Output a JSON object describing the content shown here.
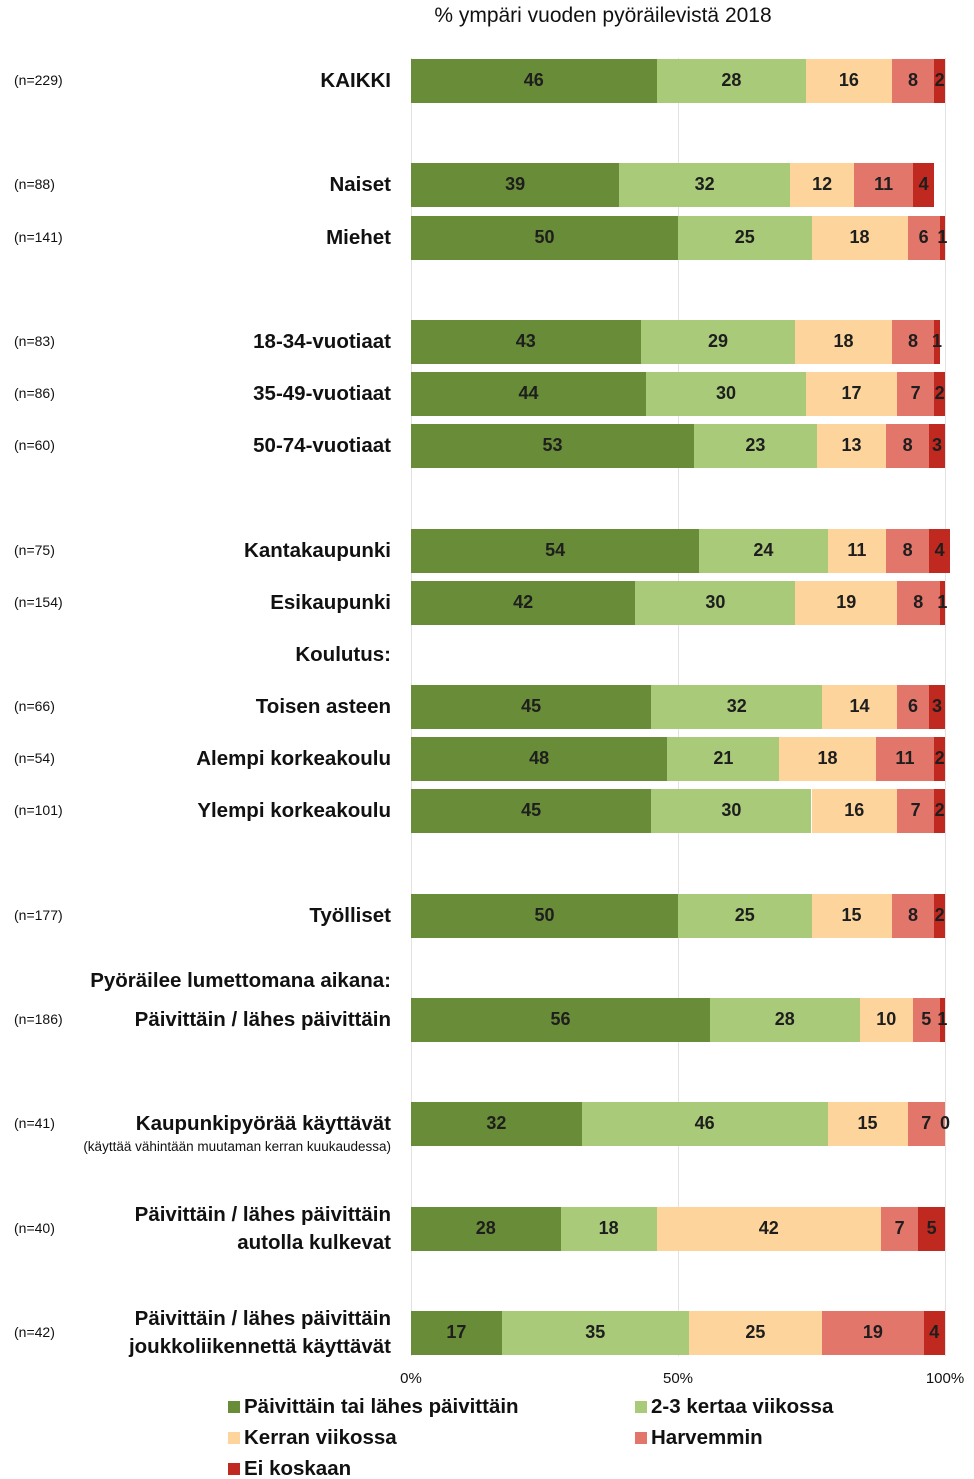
{
  "chart_data": {
    "type": "bar",
    "orientation": "horizontal",
    "stacked": true,
    "title": "% ympäri vuoden pyöräilevistä 2018",
    "categories": [
      "KAIKKI",
      "Naiset",
      "Miehet",
      "18-34-vuotiaat",
      "35-49-vuotiaat",
      "50-74-vuotiaat",
      "Kantakaupunki",
      "Esikaupunki",
      "Koulutus:",
      "Toisen asteen",
      "Alempi korkeakoulu",
      "Ylempi korkeakoulu",
      "Työlliset",
      "Pyöräilee lumettomana aikana:",
      "Päivittäin / lähes päivittäin",
      "Kaupunkipyörää käyttävät",
      "Päivittäin / lähes päivittäin\nautolla kulkevat",
      "Päivittäin / lähes päivittäin\njoukkoliikennettä käyttävät"
    ],
    "category_notes": [
      null,
      null,
      null,
      null,
      null,
      null,
      null,
      null,
      null,
      null,
      null,
      null,
      null,
      null,
      null,
      "(käyttää vähintään muutaman kerran kuukaudessa)",
      null,
      null
    ],
    "sample_sizes": [
      "(n=229)",
      "(n=88)",
      "(n=141)",
      "(n=83)",
      "(n=86)",
      "(n=60)",
      "(n=75)",
      "(n=154)",
      null,
      "(n=66)",
      "(n=54)",
      "(n=101)",
      "(n=177)",
      null,
      "(n=186)",
      "(n=41)",
      "(n=40)",
      "(n=42)"
    ],
    "series": [
      {
        "name": "Päivittäin tai lähes päivittäin",
        "color": "#688c37",
        "values": [
          46,
          39,
          50,
          43,
          44,
          53,
          54,
          42,
          null,
          45,
          48,
          45,
          50,
          null,
          56,
          32,
          28,
          17
        ]
      },
      {
        "name": "2-3 kertaa viikossa",
        "color": "#a8ca79",
        "values": [
          28,
          32,
          25,
          29,
          30,
          23,
          24,
          30,
          null,
          32,
          21,
          30,
          25,
          null,
          28,
          46,
          18,
          35
        ]
      },
      {
        "name": "Kerran viikossa",
        "color": "#fdd49b",
        "values": [
          16,
          12,
          18,
          18,
          17,
          13,
          11,
          19,
          null,
          14,
          18,
          16,
          15,
          null,
          10,
          15,
          42,
          25
        ]
      },
      {
        "name": "Harvemmin",
        "color": "#e3766b",
        "values": [
          8,
          11,
          6,
          8,
          7,
          8,
          8,
          8,
          null,
          6,
          11,
          7,
          8,
          null,
          5,
          7,
          7,
          19
        ]
      },
      {
        "name": "Ei koskaan",
        "color": "#c0291f",
        "values": [
          2,
          4,
          1,
          1,
          2,
          3,
          4,
          1,
          null,
          3,
          2,
          2,
          2,
          null,
          1,
          0,
          5,
          4
        ]
      }
    ],
    "xlim": [
      0,
      100
    ],
    "xticks": [
      {
        "value": 0,
        "label": "0%"
      },
      {
        "value": 50,
        "label": "50%"
      },
      {
        "value": 100,
        "label": "100%"
      }
    ],
    "grid": true,
    "legend": "bottom"
  }
}
